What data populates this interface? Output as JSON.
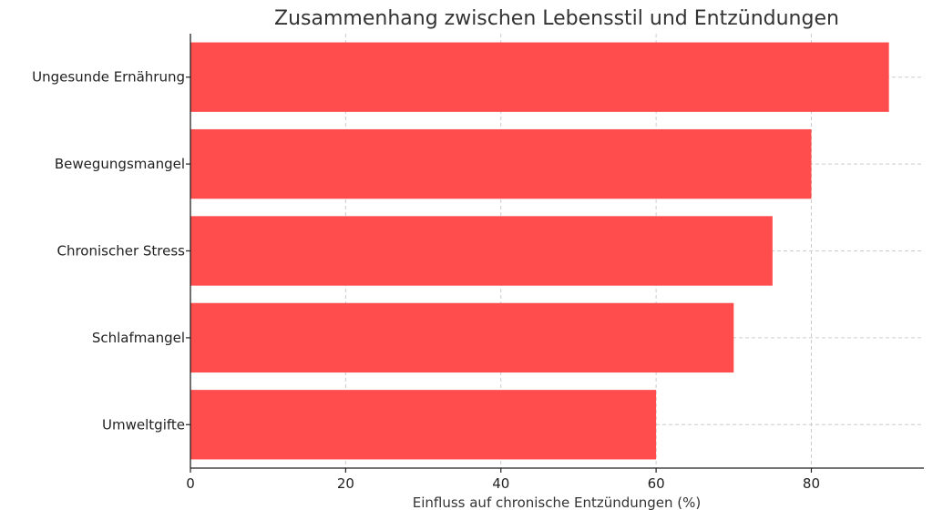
{
  "chart_data": {
    "type": "bar",
    "orientation": "horizontal",
    "title": "Zusammenhang zwischen Lebensstil und Entzündungen",
    "xlabel": "Einfluss auf chronische Entzündungen (%)",
    "ylabel": "",
    "categories": [
      "Ungesunde Ernährung",
      "Bewegungsmangel",
      "Chronischer Stress",
      "Schlafmangel",
      "Umweltgifte"
    ],
    "values": [
      90,
      80,
      75,
      70,
      60
    ],
    "xlim": [
      0,
      94.5
    ],
    "xticks": [
      0,
      20,
      40,
      60,
      80
    ],
    "grid": true,
    "bar_color": "#ff4c4c"
  }
}
